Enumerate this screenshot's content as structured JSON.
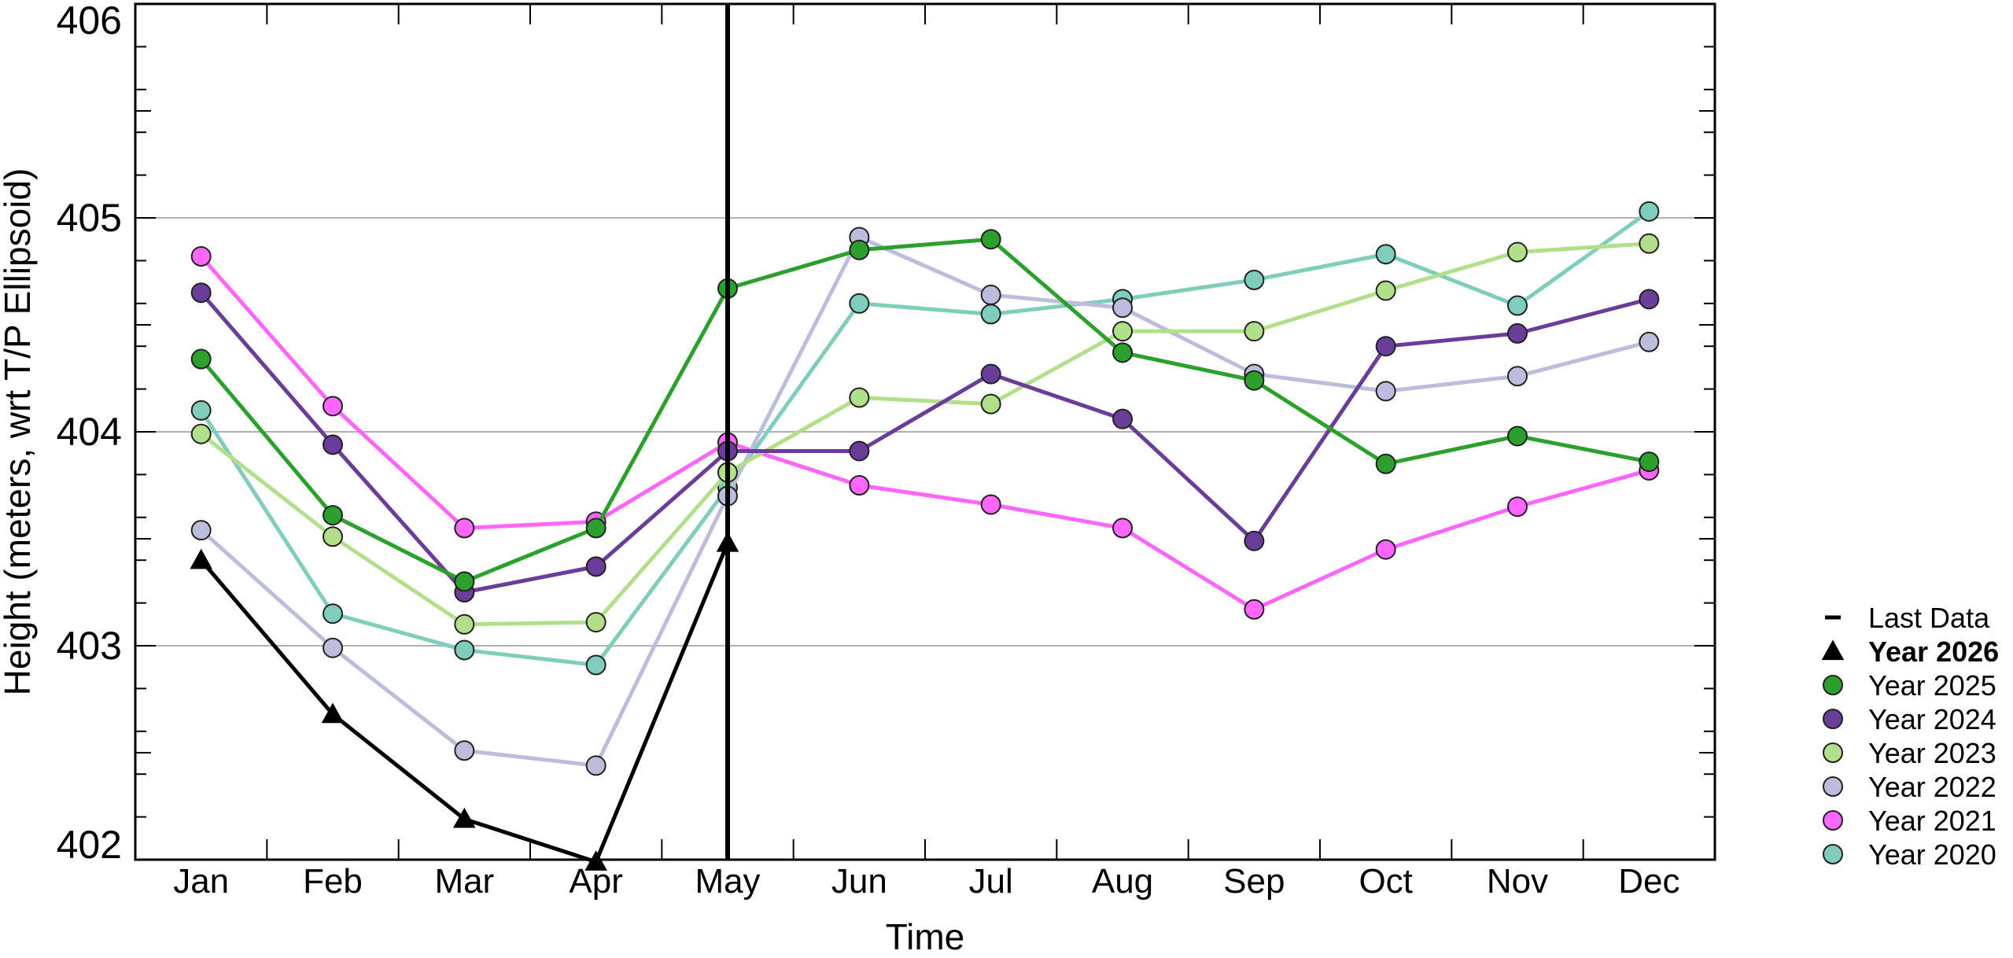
{
  "chart_data": {
    "type": "line",
    "title": "",
    "xlabel": "Time",
    "ylabel": "Height (meters, wrt T/P Ellipsoid)",
    "categories": [
      "Jan",
      "Feb",
      "Mar",
      "Apr",
      "May",
      "Jun",
      "Jul",
      "Aug",
      "Sep",
      "Oct",
      "Nov",
      "Dec"
    ],
    "ylim": [
      402,
      406
    ],
    "yticks": [
      "402",
      "403",
      "404",
      "405",
      "406"
    ],
    "grid": "horizontal at major ticks",
    "legend_position": "right, outside plot",
    "last_data_marker": {
      "label": "Last Data",
      "category": "May",
      "color": "#000000"
    },
    "series": [
      {
        "name": "Year 2026",
        "color": "#000000",
        "marker": "triangle",
        "bold": true,
        "values": [
          403.4,
          402.68,
          402.19,
          401.99,
          403.48,
          null,
          null,
          null,
          null,
          null,
          null,
          null
        ]
      },
      {
        "name": "Year 2025",
        "color": "#2ca02c",
        "marker": "circle",
        "bold": false,
        "values": [
          404.34,
          403.61,
          403.3,
          403.55,
          404.67,
          404.85,
          404.9,
          404.37,
          404.24,
          403.85,
          403.98,
          403.86
        ]
      },
      {
        "name": "Year 2024",
        "color": "#6a3d9a",
        "marker": "circle",
        "bold": false,
        "values": [
          404.65,
          403.94,
          403.25,
          403.37,
          403.91,
          403.91,
          404.27,
          404.06,
          403.49,
          404.4,
          404.46,
          404.62
        ]
      },
      {
        "name": "Year 2023",
        "color": "#b2df8a",
        "marker": "circle",
        "bold": false,
        "values": [
          403.99,
          403.51,
          403.1,
          403.11,
          403.81,
          404.16,
          404.13,
          404.47,
          404.47,
          404.66,
          404.84,
          404.88
        ]
      },
      {
        "name": "Year 2022",
        "color": "#bcbddc",
        "marker": "circle",
        "bold": false,
        "values": [
          403.54,
          402.99,
          402.51,
          402.44,
          403.7,
          404.91,
          404.64,
          404.58,
          404.27,
          404.19,
          404.26,
          404.42
        ]
      },
      {
        "name": "Year 2021",
        "color": "#ff66ff",
        "marker": "circle",
        "bold": false,
        "values": [
          404.82,
          404.12,
          403.55,
          403.58,
          403.95,
          403.75,
          403.66,
          403.55,
          403.17,
          403.45,
          403.65,
          403.82
        ]
      },
      {
        "name": "Year 2020",
        "color": "#7fcdbb",
        "marker": "circle",
        "bold": false,
        "values": [
          404.1,
          403.15,
          402.98,
          402.91,
          403.74,
          404.6,
          404.55,
          404.62,
          404.71,
          404.83,
          404.59,
          405.03
        ]
      }
    ]
  }
}
